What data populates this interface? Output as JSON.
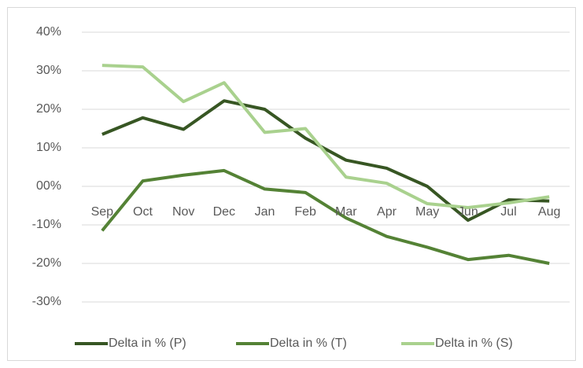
{
  "chart_data": {
    "type": "line",
    "categories": [
      "Sep",
      "Oct",
      "Nov",
      "Dec",
      "Jan",
      "Feb",
      "Mar",
      "Apr",
      "May",
      "Jun",
      "Jul",
      "Aug"
    ],
    "series": [
      {
        "name": "Delta in % (P)",
        "color": "#375623",
        "values": [
          13.5,
          17.8,
          14.8,
          22.2,
          20,
          12.5,
          6.8,
          4.7,
          0,
          -8.8,
          -3.5,
          -3.8
        ]
      },
      {
        "name": "Delta in % (T)",
        "color": "#548235",
        "values": [
          -11.5,
          1.4,
          2.9,
          4.1,
          -0.7,
          -1.6,
          -8.2,
          -13,
          -15.8,
          -19,
          -17.9,
          -20
        ]
      },
      {
        "name": "Delta in % (S)",
        "color": "#a9d18e",
        "values": [
          31.4,
          31,
          22,
          26.9,
          14,
          15,
          2.4,
          0.8,
          -4.5,
          -5.5,
          -4.3,
          -2.7
        ]
      }
    ],
    "ylim": [
      -30,
      40
    ],
    "yticks": [
      {
        "value": -30,
        "label": "-30%"
      },
      {
        "value": -20,
        "label": "-20%"
      },
      {
        "value": -10,
        "label": "-10%"
      },
      {
        "value": 0,
        "label": "00%"
      },
      {
        "value": 10,
        "label": "10%"
      },
      {
        "value": 20,
        "label": "20%"
      },
      {
        "value": 30,
        "label": "30%"
      },
      {
        "value": 40,
        "label": "40%"
      }
    ],
    "grid": true,
    "legend": "bottom"
  }
}
